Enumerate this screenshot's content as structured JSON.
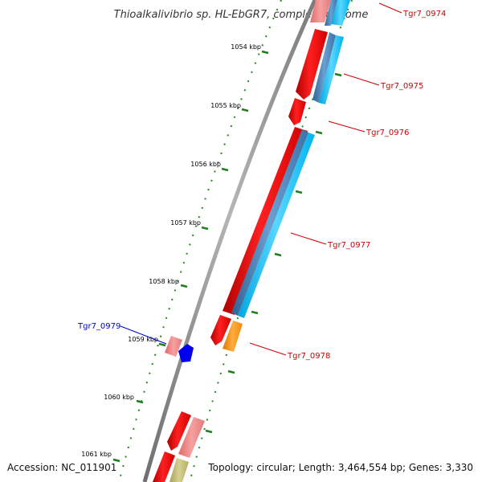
{
  "title": "Thioalkalivibrio sp. HL-EbGR7, complete genome",
  "accession_label": "Accession: NC_011901",
  "topology_label": "Topology: circular; Length: 3,464,554 bp; Genes: 3,330",
  "colors": {
    "backbone": "#8c8c8c",
    "cds_forward": "#ff0000",
    "cds_forward_light": "#f08080",
    "feature_blue": "#4682b4",
    "feature_cyan": "#00bfff",
    "feature_orange": "#ff8c00",
    "feature_olive": "#bdb76b",
    "small_blue": "#0000ff",
    "tick_green": "#228b22",
    "label_red": "#cc0000",
    "label_blue": "#0000cc"
  },
  "kbp_ticks": [
    {
      "label": "1054 kbp"
    },
    {
      "label": "1055 kbp"
    },
    {
      "label": "1056 kbp"
    },
    {
      "label": "1057 kbp"
    },
    {
      "label": "1058 kbp"
    },
    {
      "label": "1059 kbp"
    },
    {
      "label": "1060 kbp"
    },
    {
      "label": "1061 kbp"
    }
  ],
  "gene_labels": [
    {
      "name": "Tgr7_0974",
      "color": "label_red"
    },
    {
      "name": "Tgr7_0975",
      "color": "label_red"
    },
    {
      "name": "Tgr7_0976",
      "color": "label_red"
    },
    {
      "name": "Tgr7_0977",
      "color": "label_red"
    },
    {
      "name": "Tgr7_0978",
      "color": "label_red"
    },
    {
      "name": "Tgr7_0979",
      "color": "label_blue"
    }
  ]
}
